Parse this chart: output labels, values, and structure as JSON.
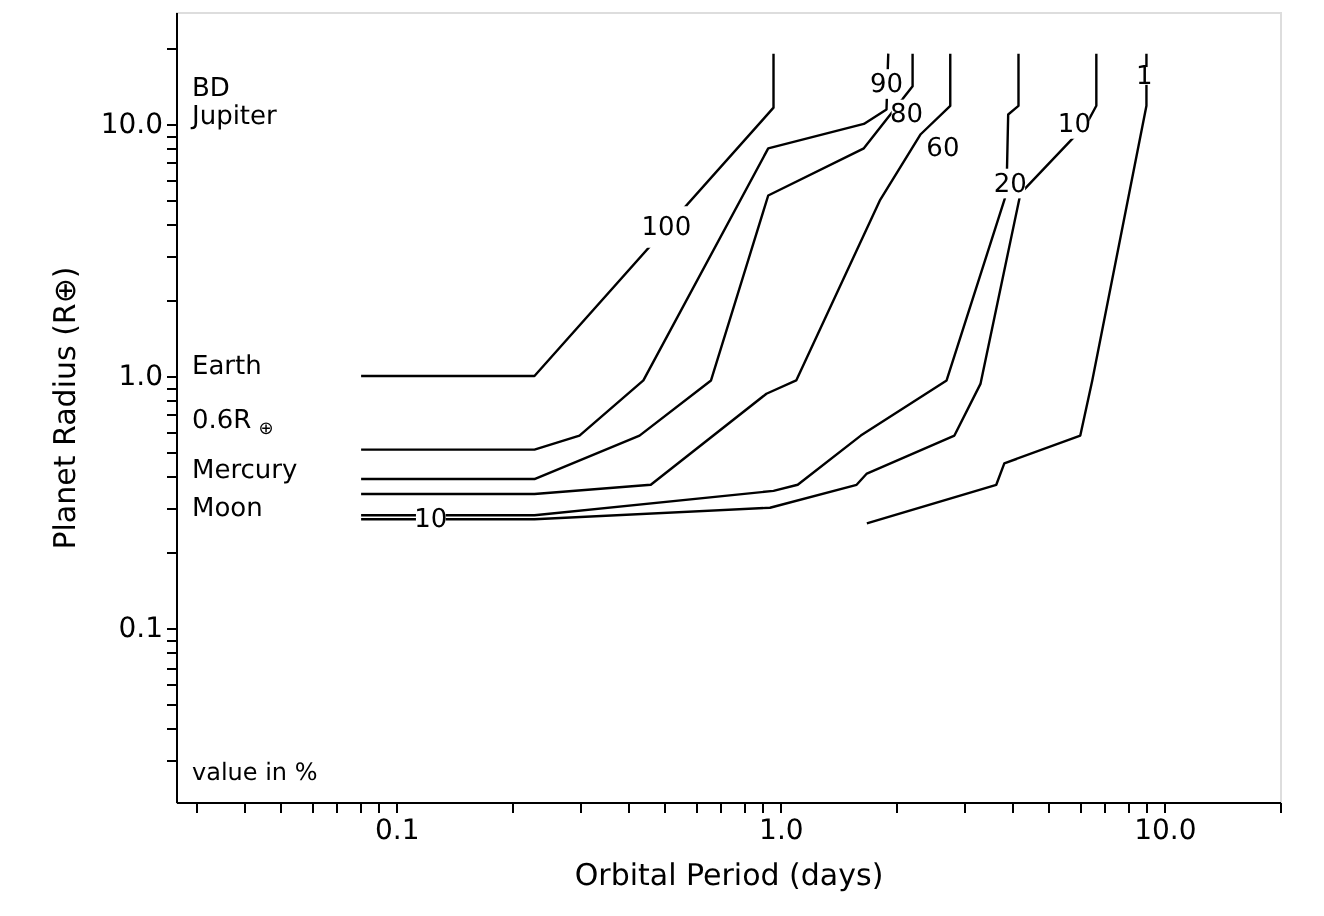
{
  "chart_data": {
    "type": "line",
    "xlabel": "Orbital Period (days)",
    "ylabel": "Planet Radius (R⊕)",
    "log": "xy",
    "grid": false,
    "xlim": [
      0.0267,
      20
    ],
    "ylim": [
      0.0204,
      27.8
    ],
    "xticks": [
      {
        "value": 0.03,
        "label": null
      },
      {
        "value": 0.04,
        "label": null
      },
      {
        "value": 0.05,
        "label": null
      },
      {
        "value": 0.06,
        "label": null
      },
      {
        "value": 0.07,
        "label": null
      },
      {
        "value": 0.08,
        "label": null
      },
      {
        "value": 0.09,
        "label": null
      },
      {
        "value": 0.1,
        "label": "0.1"
      },
      {
        "value": 0.2,
        "label": null
      },
      {
        "value": 0.3,
        "label": null
      },
      {
        "value": 0.4,
        "label": null
      },
      {
        "value": 0.5,
        "label": null
      },
      {
        "value": 0.6,
        "label": null
      },
      {
        "value": 0.7,
        "label": null
      },
      {
        "value": 0.8,
        "label": null
      },
      {
        "value": 0.9,
        "label": null
      },
      {
        "value": 1,
        "label": "1.0"
      },
      {
        "value": 2,
        "label": null
      },
      {
        "value": 3,
        "label": null
      },
      {
        "value": 4,
        "label": null
      },
      {
        "value": 5,
        "label": null
      },
      {
        "value": 6,
        "label": null
      },
      {
        "value": 7,
        "label": null
      },
      {
        "value": 8,
        "label": null
      },
      {
        "value": 9,
        "label": null
      },
      {
        "value": 10,
        "label": "10.0"
      },
      {
        "value": 20,
        "label": null
      }
    ],
    "yticks": [
      {
        "value": 0.03,
        "label": null
      },
      {
        "value": 0.04,
        "label": null
      },
      {
        "value": 0.05,
        "label": null
      },
      {
        "value": 0.06,
        "label": null
      },
      {
        "value": 0.07,
        "label": null
      },
      {
        "value": 0.08,
        "label": null
      },
      {
        "value": 0.09,
        "label": null
      },
      {
        "value": 0.1,
        "label": "0.1"
      },
      {
        "value": 0.2,
        "label": null
      },
      {
        "value": 0.3,
        "label": null
      },
      {
        "value": 0.4,
        "label": null
      },
      {
        "value": 0.5,
        "label": null
      },
      {
        "value": 0.6,
        "label": null
      },
      {
        "value": 0.7,
        "label": null
      },
      {
        "value": 0.8,
        "label": null
      },
      {
        "value": 0.9,
        "label": null
      },
      {
        "value": 1,
        "label": "1.0"
      },
      {
        "value": 2,
        "label": null
      },
      {
        "value": 3,
        "label": null
      },
      {
        "value": 4,
        "label": null
      },
      {
        "value": 5,
        "label": null
      },
      {
        "value": 6,
        "label": null
      },
      {
        "value": 7,
        "label": null
      },
      {
        "value": 8,
        "label": null
      },
      {
        "value": 9,
        "label": null
      },
      {
        "value": 10,
        "label": "10.0"
      },
      {
        "value": 20,
        "label": null
      }
    ],
    "series": [
      {
        "color": "#000000",
        "x": [
          0.081,
          0.229,
          0.96,
          0.96
        ],
        "values": [
          1.0,
          1.0,
          11.6,
          19
        ]
      },
      {
        "color": "#000000",
        "x": [
          0.081,
          0.229,
          0.3,
          0.44,
          0.93,
          1.65,
          1.89,
          1.91
        ],
        "values": [
          0.51,
          0.51,
          0.58,
          0.96,
          8.0,
          10.0,
          11.4,
          19
        ]
      },
      {
        "color": "#000000",
        "x": [
          0.081,
          0.229,
          0.43,
          0.66,
          0.93,
          1.65,
          2.21,
          2.21
        ],
        "values": [
          0.39,
          0.39,
          0.58,
          0.96,
          5.2,
          8.0,
          14.1,
          19
        ]
      },
      {
        "color": "#000000",
        "x": [
          0.081,
          0.229,
          0.46,
          0.92,
          1.1,
          1.82,
          2.32,
          2.77,
          2.77
        ],
        "values": [
          0.34,
          0.34,
          0.37,
          0.85,
          0.96,
          5.0,
          9.1,
          11.8,
          19
        ]
      },
      {
        "color": "#000000",
        "x": [
          0.081,
          0.229,
          0.96,
          1.11,
          1.62,
          2.71,
          3.88,
          3.92,
          4.17,
          4.17
        ],
        "values": [
          0.28,
          0.28,
          0.35,
          0.37,
          0.58,
          0.96,
          5.3,
          10.9,
          11.8,
          19
        ]
      },
      {
        "color": "#000000",
        "x": [
          0.081,
          0.229,
          0.94,
          1.58,
          1.68,
          2.84,
          3.32,
          4.22,
          6.27,
          6.65,
          6.65
        ],
        "values": [
          0.27,
          0.27,
          0.3,
          0.37,
          0.41,
          0.58,
          0.93,
          5.3,
          10.0,
          11.8,
          19
        ]
      },
      {
        "color": "#000000",
        "x": [
          1.68,
          3.65,
          3.83,
          6.04,
          6.49,
          8.98,
          8.98
        ],
        "values": [
          0.26,
          0.37,
          0.45,
          0.58,
          0.96,
          11.8,
          19
        ]
      }
    ],
    "annotations": [
      "BD",
      "Jupiter",
      "Earth",
      "0.6R$_{⊕}$",
      "Mercury",
      "Moon",
      {
        "text": "100",
        "x": 0.505,
        "y": 3.9
      },
      {
        "text": "90",
        "x": 1.89,
        "y": 14.4
      },
      {
        "text": "80",
        "x": 2.13,
        "y": 10.9
      },
      {
        "text": "60",
        "x": 2.65,
        "y": 8.0
      },
      {
        "text": "20",
        "x": 3.97,
        "y": 5.8
      },
      {
        "text": "10",
        "x": 5.83,
        "y": 10
      },
      {
        "text": "1",
        "x": 8.87,
        "y": 15.5
      },
      {
        "text": "10",
        "x": 0.123,
        "y": 0.27
      },
      "value in %"
    ]
  }
}
